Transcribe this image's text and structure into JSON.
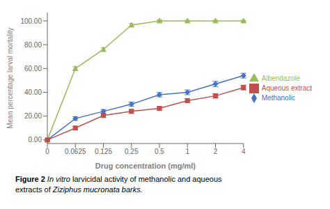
{
  "chart_data": {
    "type": "line",
    "xlabel": "Drug concentration (mg/ml)",
    "ylabel": "Mean percentage larval mortality",
    "annotations": [
      "Figure 2",
      "In vitro",
      "larvicidal activity of methanolic and aqueous",
      "extracts of",
      "Ziziphus mucronata barks."
    ],
    "categories": [
      "0",
      "0.0625",
      "0.125",
      "0.25",
      "0.5",
      "1",
      "2",
      "4"
    ],
    "series": [
      {
        "name": "Albendazole",
        "color": "#9BBB59",
        "marker": "triangle",
        "values": [
          0.0,
          60.0,
          76.0,
          96.5,
          100.0,
          100.0,
          100.0,
          100.0
        ],
        "errors": [
          0.3,
          1.5,
          1.5,
          1.2,
          0.8,
          0.5,
          0.5,
          0.5
        ]
      },
      {
        "name": "Methanolic",
        "color": "#4472C4",
        "marker": "diamond",
        "values": [
          0.0,
          18.0,
          24.0,
          30.0,
          38.0,
          40.0,
          47.0,
          54.0
        ],
        "errors": [
          0.3,
          1.5,
          1.5,
          1.8,
          1.8,
          2.0,
          2.2,
          2.0
        ]
      },
      {
        "name": "Aqueous extract",
        "color": "#C0504D",
        "marker": "square",
        "values": [
          0.0,
          10.0,
          20.5,
          24.0,
          26.5,
          33.0,
          37.0,
          44.0
        ],
        "errors": [
          0.3,
          1.2,
          1.5,
          1.5,
          1.5,
          1.8,
          1.8,
          2.0
        ]
      }
    ],
    "ylim": [
      -3,
      107
    ],
    "yticks": [
      {
        "value": 0,
        "label": "0.00"
      },
      {
        "value": 20,
        "label": "20.00"
      },
      {
        "value": 40,
        "label": "40.00"
      },
      {
        "value": 60,
        "label": "60.00"
      },
      {
        "value": 80,
        "label": "80.00"
      },
      {
        "value": 100,
        "label": "100.00"
      }
    ],
    "grid": false,
    "legend": "right"
  }
}
